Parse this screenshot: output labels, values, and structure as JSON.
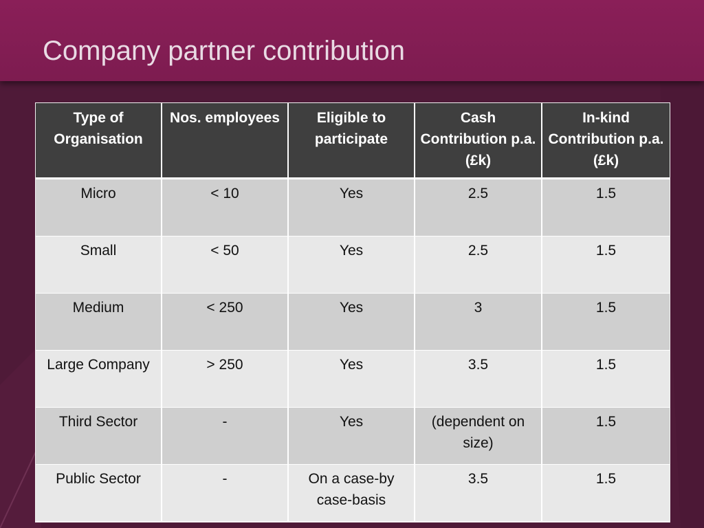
{
  "slide": {
    "title": "Company partner contribution"
  },
  "table": {
    "headers": [
      "Type of Organisation",
      "Nos. employees",
      "Eligible to participate",
      "Cash Contribution p.a. (£k)",
      "In-kind Contribution p.a. (£k)"
    ],
    "rows": [
      [
        "Micro",
        "< 10",
        "Yes",
        "2.5",
        "1.5"
      ],
      [
        "Small",
        "< 50",
        "Yes",
        "2.5",
        "1.5"
      ],
      [
        "Medium",
        "< 250",
        "Yes",
        "3",
        "1.5"
      ],
      [
        "Large Company",
        "> 250",
        "Yes",
        "3.5",
        "1.5"
      ],
      [
        "Third Sector",
        "-",
        "Yes",
        "(dependent on size)",
        "1.5"
      ],
      [
        "Public Sector",
        "-",
        "On a case-by case-basis",
        "3.5",
        "1.5"
      ]
    ]
  },
  "colors": {
    "header_band": "#7d1c50",
    "background": "#4f1a38",
    "table_header": "#3f3f3f",
    "row_odd": "#cfcfcf",
    "row_even": "#e8e8e8"
  }
}
